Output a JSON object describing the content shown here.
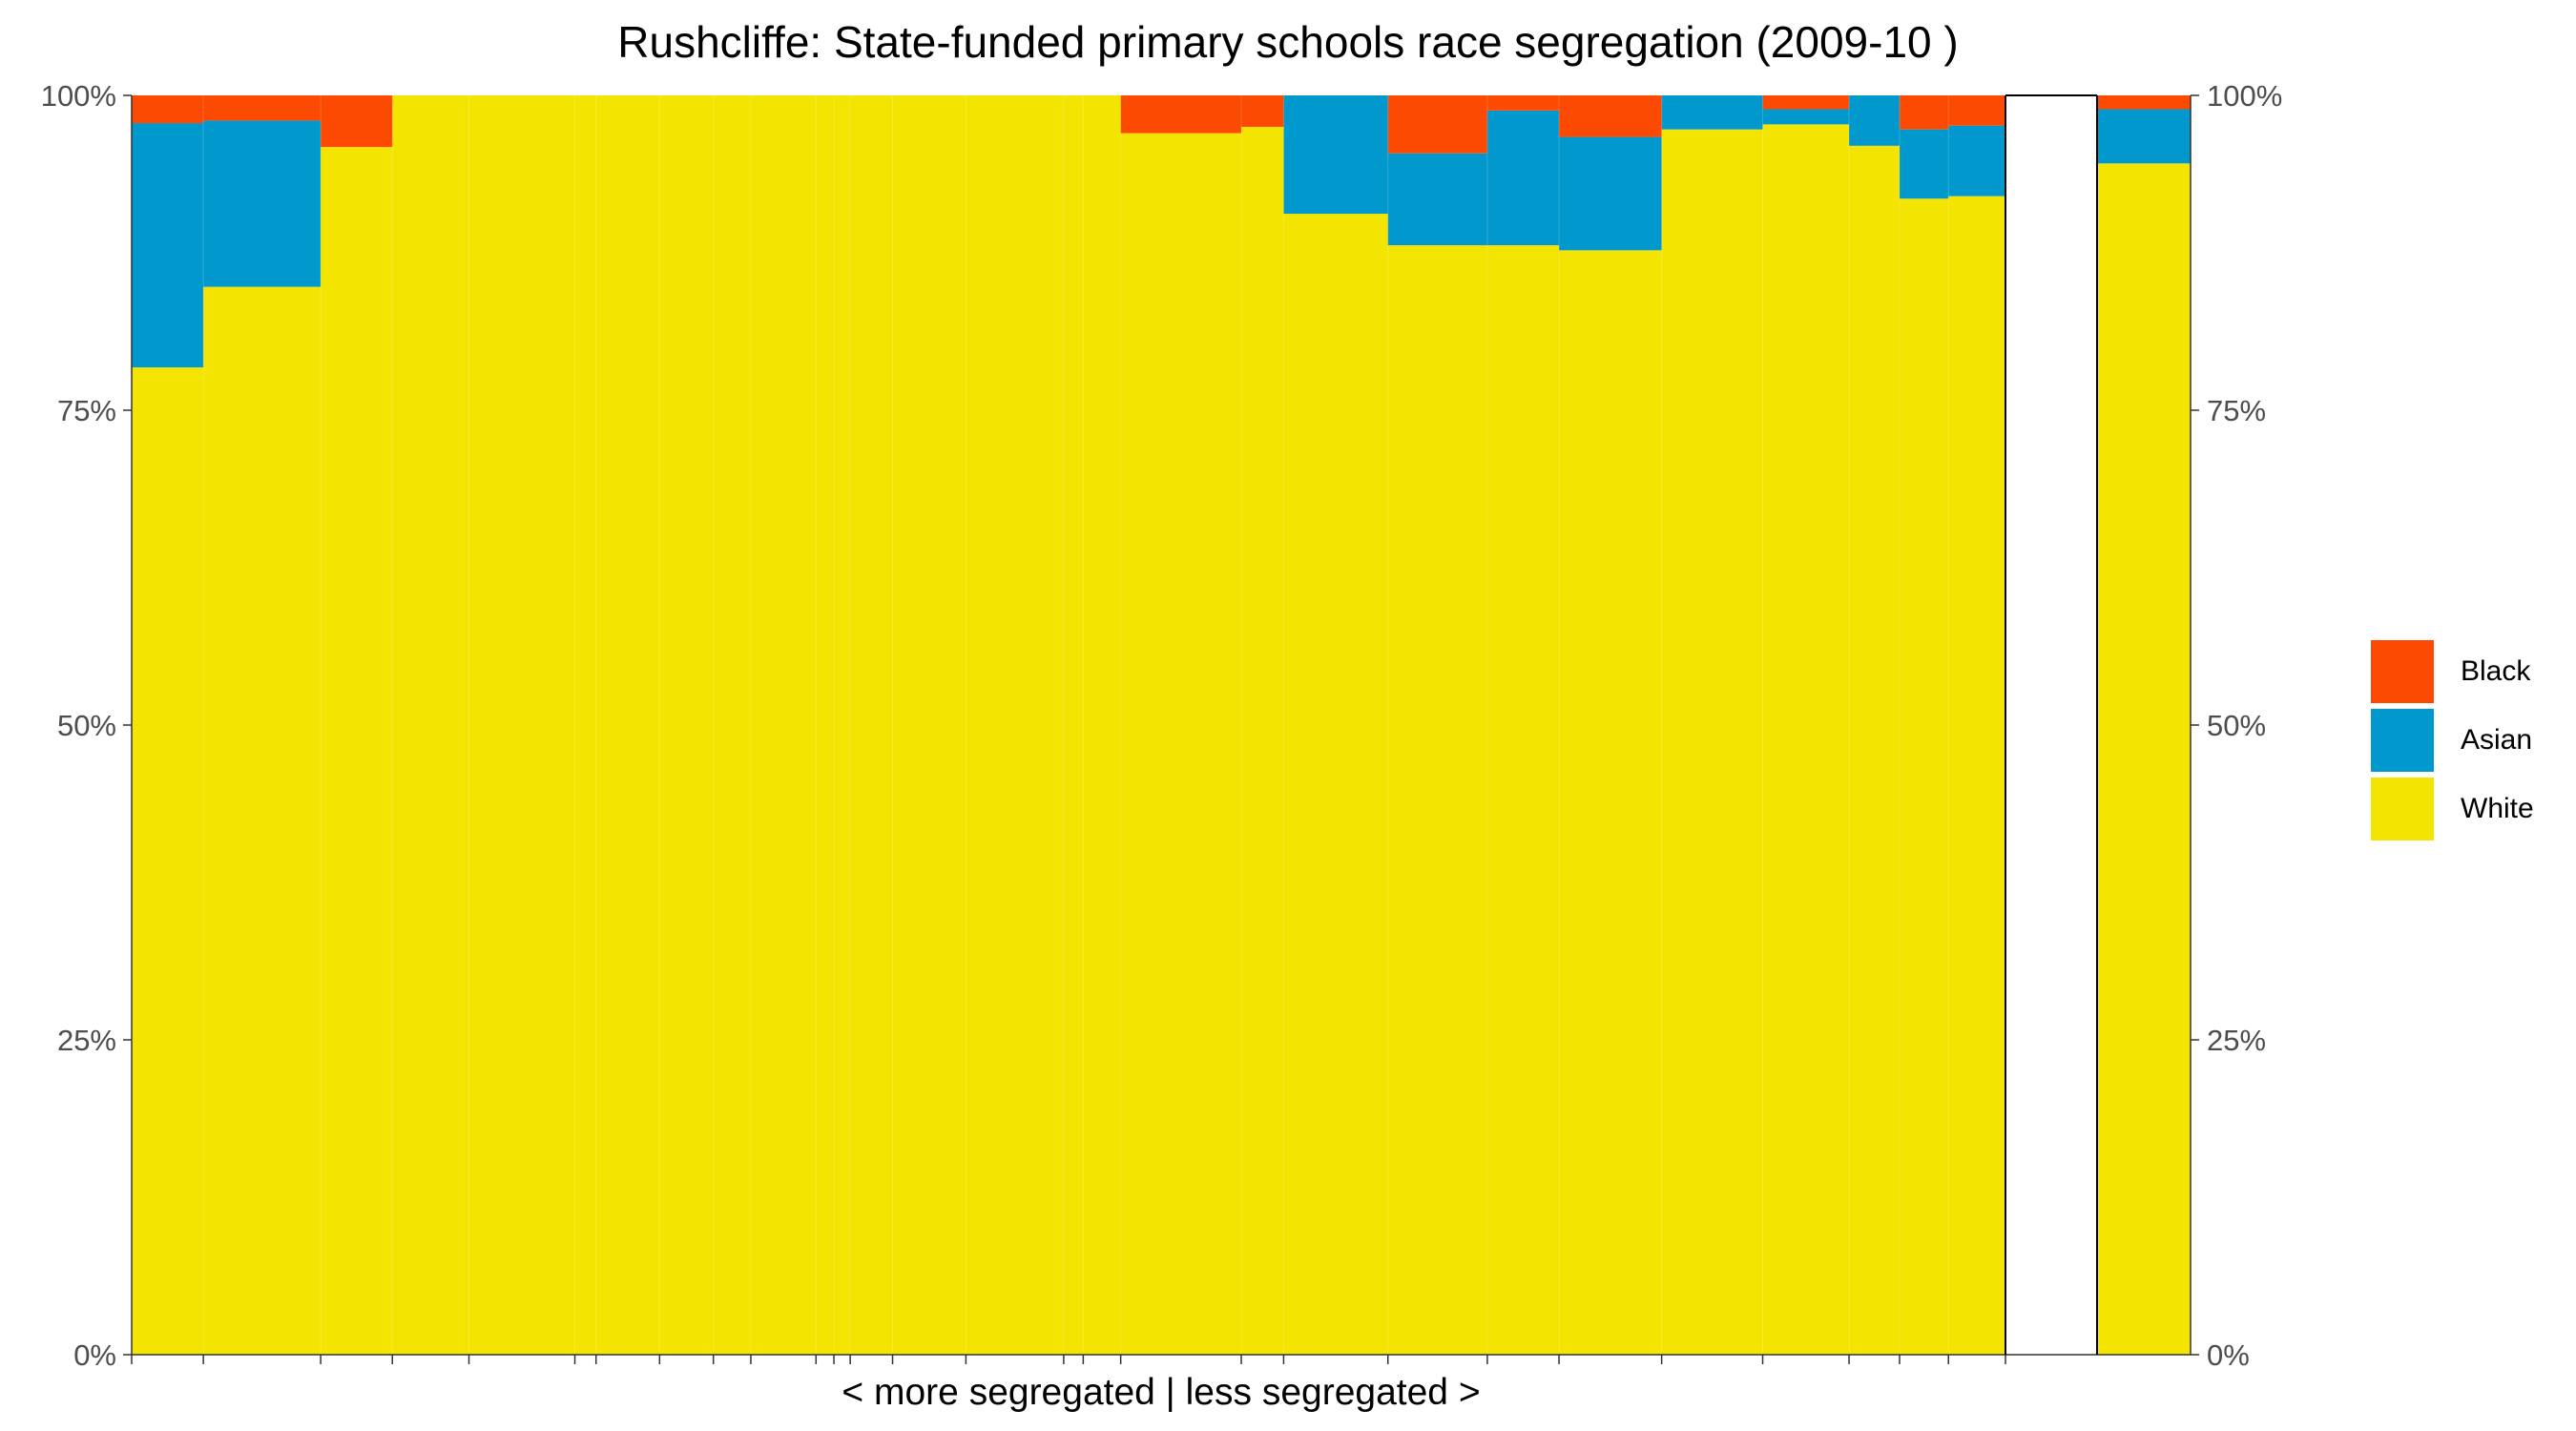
{
  "chart_data": {
    "type": "bar",
    "subtype": "stacked-100-variable-width",
    "title": "Rushcliffe: State-funded primary schools race segregation (2009-10 )",
    "xlabel": "< more segregated | less segregated >",
    "ylabel": "",
    "ylim": [
      0,
      100
    ],
    "y_ticks": [
      "0%",
      "25%",
      "50%",
      "75%",
      "100%"
    ],
    "legend": {
      "placement": "right",
      "entries": [
        "Black",
        "Asian",
        "White"
      ]
    },
    "colors": {
      "Black": "#fc4a02",
      "Asian": "#0199cd",
      "White": "#f4e402"
    },
    "schools": [
      {
        "width": 4.4,
        "white": 78.4,
        "asian": 19.4,
        "black": 2.2
      },
      {
        "width": 7.2,
        "white": 84.8,
        "asian": 13.2,
        "black": 2.0
      },
      {
        "width": 4.4,
        "white": 95.9,
        "asian": 0.0,
        "black": 4.1
      },
      {
        "width": 4.7,
        "white": 100,
        "asian": 0,
        "black": 0
      },
      {
        "width": 6.5,
        "white": 100,
        "asian": 0,
        "black": 0
      },
      {
        "width": 1.3,
        "white": 100,
        "asian": 0,
        "black": 0
      },
      {
        "width": 3.9,
        "white": 100,
        "asian": 0,
        "black": 0
      },
      {
        "width": 3.3,
        "white": 100,
        "asian": 0,
        "black": 0
      },
      {
        "width": 2.3,
        "white": 100,
        "asian": 0,
        "black": 0
      },
      {
        "width": 4.0,
        "white": 100,
        "asian": 0,
        "black": 0
      },
      {
        "width": 1.1,
        "white": 100,
        "asian": 0,
        "black": 0
      },
      {
        "width": 1.0,
        "white": 100,
        "asian": 0,
        "black": 0
      },
      {
        "width": 2.6,
        "white": 100,
        "asian": 0,
        "black": 0
      },
      {
        "width": 4.5,
        "white": 100,
        "asian": 0,
        "black": 0
      },
      {
        "width": 6.0,
        "white": 100,
        "asian": 0,
        "black": 0
      },
      {
        "width": 1.2,
        "white": 100,
        "asian": 0,
        "black": 0
      },
      {
        "width": 2.3,
        "white": 100,
        "asian": 0,
        "black": 0
      },
      {
        "width": 7.4,
        "white": 97.0,
        "asian": 0.0,
        "black": 3.0
      },
      {
        "width": 2.6,
        "white": 97.5,
        "asian": 0.0,
        "black": 2.5
      },
      {
        "width": 6.4,
        "white": 90.6,
        "asian": 9.4,
        "black": 0.0
      },
      {
        "width": 6.1,
        "white": 88.1,
        "asian": 7.3,
        "black": 4.6
      },
      {
        "width": 4.4,
        "white": 88.1,
        "asian": 10.7,
        "black": 1.2
      },
      {
        "width": 6.3,
        "white": 87.7,
        "asian": 9.0,
        "black": 3.3
      },
      {
        "width": 6.2,
        "white": 97.3,
        "asian": 2.7,
        "black": 0.0
      },
      {
        "width": 5.3,
        "white": 97.7,
        "asian": 1.2,
        "black": 1.1
      },
      {
        "width": 3.1,
        "white": 96.0,
        "asian": 4.0,
        "black": 0.0
      },
      {
        "width": 3.0,
        "white": 91.8,
        "asian": 5.5,
        "black": 2.7
      },
      {
        "width": 3.5,
        "white": 92.0,
        "asian": 5.6,
        "black": 2.4
      }
    ],
    "overall": {
      "white": 94.6,
      "asian": 4.3,
      "black": 1.1
    }
  }
}
